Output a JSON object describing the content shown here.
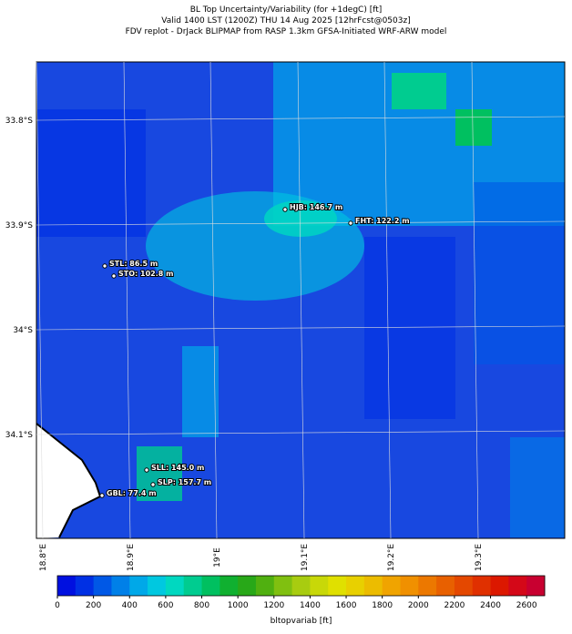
{
  "header": {
    "lines": [
      "BL Top Uncertainty/Variability (for +1degC) [ft]",
      "Valid 1400 LST (1200Z) THU 14 Aug 2025 [12hrFcst@0503z]",
      "FDV replot - DrJack BLIPMAP from RASP 1.3km GFSA-Initiated WRF-ARW model"
    ]
  },
  "map": {
    "lat_labels": [
      "33.8°S",
      "33.9°S",
      "34°S",
      "34.1°S"
    ],
    "lon_labels": [
      "18.8°E",
      "18.9°E",
      "19°E",
      "19.1°E",
      "19.2°E",
      "19.3°E"
    ],
    "stations": [
      "HJB: 146.7 m",
      "FHT: 122.2 m",
      "STL: 86.5 m",
      "STO: 102.8 m",
      "SLL: 145.0 m",
      "SLP: 157.7 m",
      "GBL: 77.4 m"
    ]
  },
  "colorbar": {
    "label": "bltopvariab [ft]",
    "lim": [
      0,
      2700
    ],
    "ticks": [
      0,
      200,
      400,
      600,
      800,
      1000,
      1200,
      1400,
      1600,
      1800,
      2000,
      2200,
      2400,
      2600
    ],
    "colors": [
      "#0010e0",
      "#0030e4",
      "#0058e6",
      "#0080e8",
      "#00a8e8",
      "#00c8e0",
      "#00d8c0",
      "#00cc90",
      "#00c060",
      "#10b030",
      "#28a818",
      "#50b010",
      "#80c010",
      "#a8cc10",
      "#c8d808",
      "#e0e000",
      "#e8d000",
      "#ecbc00",
      "#f0a400",
      "#f09000",
      "#ec7800",
      "#e86000",
      "#e44800",
      "#e03000",
      "#dc1800",
      "#d40818",
      "#c80030"
    ]
  }
}
